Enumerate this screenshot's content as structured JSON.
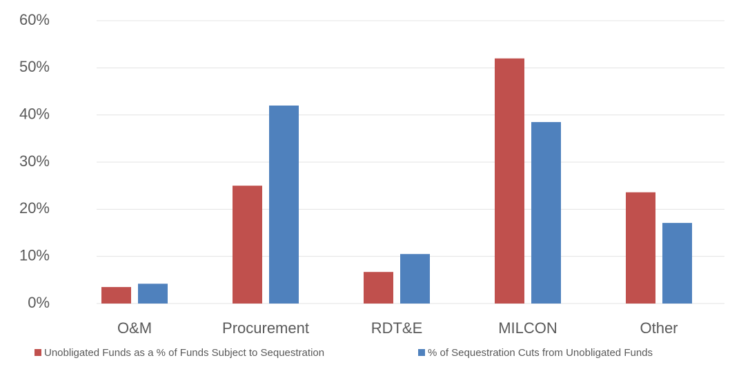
{
  "chart_data": {
    "type": "bar",
    "categories": [
      "O&M",
      "Procurement",
      "RDT&E",
      "MILCON",
      "Other"
    ],
    "series": [
      {
        "name": "Unobligated Funds as a % of Funds Subject to Sequestration",
        "color": "#c0504d",
        "values": [
          3.5,
          25.0,
          6.7,
          52.0,
          23.6
        ]
      },
      {
        "name": "% of Sequestration Cuts from Unobligated Funds",
        "color": "#4f81bd",
        "values": [
          4.2,
          42.0,
          10.5,
          38.5,
          17.1
        ]
      }
    ],
    "ylim": [
      0,
      60
    ],
    "yticks": [
      {
        "value": 0,
        "label": "0%"
      },
      {
        "value": 10,
        "label": "10%"
      },
      {
        "value": 20,
        "label": "20%"
      },
      {
        "value": 30,
        "label": "30%"
      },
      {
        "value": 40,
        "label": "40%"
      },
      {
        "value": 50,
        "label": "50%"
      },
      {
        "value": 60,
        "label": "60%"
      }
    ],
    "grid": true,
    "legend": "bottom"
  }
}
